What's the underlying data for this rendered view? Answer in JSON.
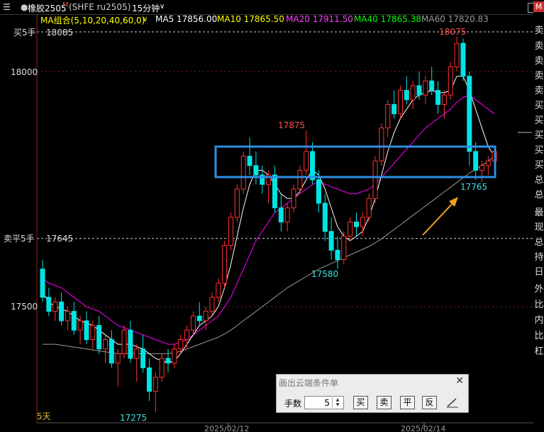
{
  "toolbar": {
    "menu_icon": "menu-icon",
    "symbol": "橡胶2505",
    "symbol_flag": "M",
    "symbol_code": "(SHFE ru2505)",
    "period": "15分钟",
    "period_chevron": "chevron-down-icon"
  },
  "ma_legend": {
    "group_label": "MA组合(5,10,20,40,60,0)",
    "items": [
      {
        "label": "MA5 17856.00",
        "color": "#ffffff"
      },
      {
        "label": "MA10 17865.50",
        "color": "#ffff00"
      },
      {
        "label": "MA20 17911.50",
        "color": "#ff00ff"
      },
      {
        "label": "MA40 17865.38",
        "color": "#00ff00"
      },
      {
        "label": "MA60 17820.83",
        "color": "#9a9a9a"
      }
    ]
  },
  "price_labels": {
    "sell5_label": "买5手",
    "sell5_value": "18085",
    "y18000": "18000",
    "close_label": "卖平5手",
    "close_value": "17645",
    "y17500": "17500"
  },
  "annotations": {
    "high1": "17875",
    "high2": "18075",
    "low1": "17580",
    "low2": "17765",
    "low3": "17275"
  },
  "range_label": "5天",
  "dates": [
    "2025/02/12",
    "2025/02/14"
  ],
  "colors": {
    "up": "#ff3232",
    "down": "#00e4e4",
    "box": "#2e8fe6",
    "arrow": "#f0a020",
    "highlabel": "#ff5050",
    "lowlabel": "#40e0e0",
    "grid": "#8a2020"
  },
  "chart_data": {
    "type": "candlestick",
    "interval": "15分钟",
    "y_ticks": [
      18000,
      17500
    ],
    "y_range": [
      17180,
      18160
    ],
    "ohlc": [
      [
        17580,
        17600,
        17510,
        17520
      ],
      [
        17520,
        17540,
        17480,
        17490
      ],
      [
        17490,
        17520,
        17470,
        17510
      ],
      [
        17510,
        17530,
        17460,
        17470
      ],
      [
        17470,
        17500,
        17450,
        17490
      ],
      [
        17490,
        17510,
        17440,
        17450
      ],
      [
        17450,
        17480,
        17420,
        17470
      ],
      [
        17470,
        17490,
        17420,
        17430
      ],
      [
        17430,
        17470,
        17410,
        17460
      ],
      [
        17460,
        17480,
        17400,
        17410
      ],
      [
        17410,
        17440,
        17380,
        17430
      ],
      [
        17430,
        17450,
        17370,
        17380
      ],
      [
        17380,
        17410,
        17330,
        17400
      ],
      [
        17400,
        17460,
        17390,
        17450
      ],
      [
        17450,
        17470,
        17380,
        17390
      ],
      [
        17390,
        17420,
        17340,
        17410
      ],
      [
        17410,
        17440,
        17360,
        17370
      ],
      [
        17370,
        17390,
        17300,
        17320
      ],
      [
        17320,
        17360,
        17275,
        17350
      ],
      [
        17350,
        17400,
        17340,
        17390
      ],
      [
        17390,
        17410,
        17360,
        17380
      ],
      [
        17380,
        17420,
        17370,
        17410
      ],
      [
        17410,
        17440,
        17400,
        17430
      ],
      [
        17430,
        17460,
        17410,
        17450
      ],
      [
        17450,
        17490,
        17440,
        17480
      ],
      [
        17480,
        17510,
        17460,
        17470
      ],
      [
        17470,
        17500,
        17450,
        17490
      ],
      [
        17490,
        17530,
        17480,
        17520
      ],
      [
        17520,
        17560,
        17510,
        17550
      ],
      [
        17550,
        17640,
        17540,
        17630
      ],
      [
        17630,
        17700,
        17620,
        17690
      ],
      [
        17690,
        17760,
        17680,
        17750
      ],
      [
        17750,
        17830,
        17740,
        17820
      ],
      [
        17820,
        17860,
        17780,
        17800
      ],
      [
        17800,
        17830,
        17760,
        17780
      ],
      [
        17780,
        17800,
        17740,
        17760
      ],
      [
        17760,
        17790,
        17720,
        17780
      ],
      [
        17780,
        17800,
        17700,
        17710
      ],
      [
        17710,
        17740,
        17660,
        17680
      ],
      [
        17680,
        17720,
        17660,
        17710
      ],
      [
        17710,
        17760,
        17700,
        17750
      ],
      [
        17750,
        17800,
        17740,
        17790
      ],
      [
        17790,
        17875,
        17780,
        17830
      ],
      [
        17830,
        17850,
        17760,
        17770
      ],
      [
        17770,
        17790,
        17700,
        17720
      ],
      [
        17720,
        17740,
        17640,
        17660
      ],
      [
        17660,
        17690,
        17600,
        17620
      ],
      [
        17620,
        17650,
        17580,
        17600
      ],
      [
        17600,
        17660,
        17590,
        17650
      ],
      [
        17650,
        17690,
        17640,
        17680
      ],
      [
        17680,
        17700,
        17650,
        17670
      ],
      [
        17670,
        17700,
        17650,
        17690
      ],
      [
        17690,
        17740,
        17680,
        17730
      ],
      [
        17730,
        17820,
        17720,
        17810
      ],
      [
        17810,
        17890,
        17800,
        17880
      ],
      [
        17880,
        17940,
        17860,
        17930
      ],
      [
        17930,
        17960,
        17900,
        17910
      ],
      [
        17910,
        17970,
        17900,
        17960
      ],
      [
        17960,
        17990,
        17930,
        17940
      ],
      [
        17940,
        17980,
        17920,
        17970
      ],
      [
        17970,
        18000,
        17940,
        17950
      ],
      [
        17950,
        17990,
        17930,
        17980
      ],
      [
        17980,
        18010,
        17950,
        17960
      ],
      [
        17960,
        17980,
        17910,
        17930
      ],
      [
        17930,
        17960,
        17900,
        17950
      ],
      [
        17950,
        18020,
        17940,
        18010
      ],
      [
        18010,
        18075,
        18000,
        18060
      ],
      [
        18060,
        18070,
        17980,
        17990
      ],
      [
        17990,
        18000,
        17800,
        17830
      ],
      [
        17830,
        17850,
        17770,
        17790
      ],
      [
        17790,
        17810,
        17765,
        17800
      ],
      [
        17800,
        17820,
        17780,
        17810
      ],
      [
        17810,
        17840,
        17800,
        17830
      ]
    ],
    "ma5": [
      17530,
      17510,
      17500,
      17495,
      17490,
      17480,
      17470,
      17465,
      17460,
      17450,
      17440,
      17430,
      17420,
      17420,
      17420,
      17415,
      17410,
      17400,
      17390,
      17385,
      17380,
      17385,
      17400,
      17420,
      17440,
      17460,
      17470,
      17480,
      17500,
      17540,
      17590,
      17650,
      17710,
      17760,
      17790,
      17790,
      17780,
      17760,
      17740,
      17730,
      17730,
      17745,
      17770,
      17790,
      17780,
      17750,
      17710,
      17670,
      17650,
      17640,
      17650,
      17660,
      17690,
      17730,
      17780,
      17830,
      17870,
      17900,
      17920,
      17940,
      17950,
      17955,
      17960,
      17955,
      17955,
      17960,
      17990,
      17990,
      17960,
      17920,
      17880,
      17840,
      17820
    ],
    "ma20": [
      17560,
      17550,
      17545,
      17540,
      17530,
      17520,
      17510,
      17500,
      17495,
      17490,
      17480,
      17470,
      17460,
      17455,
      17450,
      17445,
      17440,
      17435,
      17430,
      17425,
      17420,
      17420,
      17425,
      17430,
      17440,
      17450,
      17460,
      17470,
      17480,
      17500,
      17520,
      17550,
      17580,
      17610,
      17640,
      17660,
      17680,
      17700,
      17710,
      17720,
      17730,
      17740,
      17750,
      17760,
      17765,
      17760,
      17755,
      17750,
      17745,
      17740,
      17740,
      17745,
      17750,
      17760,
      17775,
      17790,
      17805,
      17820,
      17835,
      17850,
      17865,
      17880,
      17890,
      17900,
      17910,
      17920,
      17935,
      17945,
      17950,
      17940,
      17930,
      17920,
      17910
    ],
    "ma60": [
      17420,
      17420,
      17420,
      17418,
      17416,
      17414,
      17412,
      17410,
      17408,
      17406,
      17404,
      17402,
      17400,
      17400,
      17400,
      17400,
      17400,
      17400,
      17400,
      17400,
      17400,
      17402,
      17405,
      17410,
      17415,
      17420,
      17425,
      17430,
      17435,
      17442,
      17450,
      17460,
      17470,
      17480,
      17490,
      17500,
      17510,
      17520,
      17530,
      17540,
      17548,
      17556,
      17564,
      17572,
      17580,
      17586,
      17592,
      17598,
      17604,
      17610,
      17616,
      17622,
      17628,
      17636,
      17644,
      17654,
      17664,
      17674,
      17684,
      17694,
      17704,
      17714,
      17724,
      17734,
      17744,
      17754,
      17764,
      17774,
      17784,
      17792,
      17800,
      17810,
      17820
    ]
  }
}
